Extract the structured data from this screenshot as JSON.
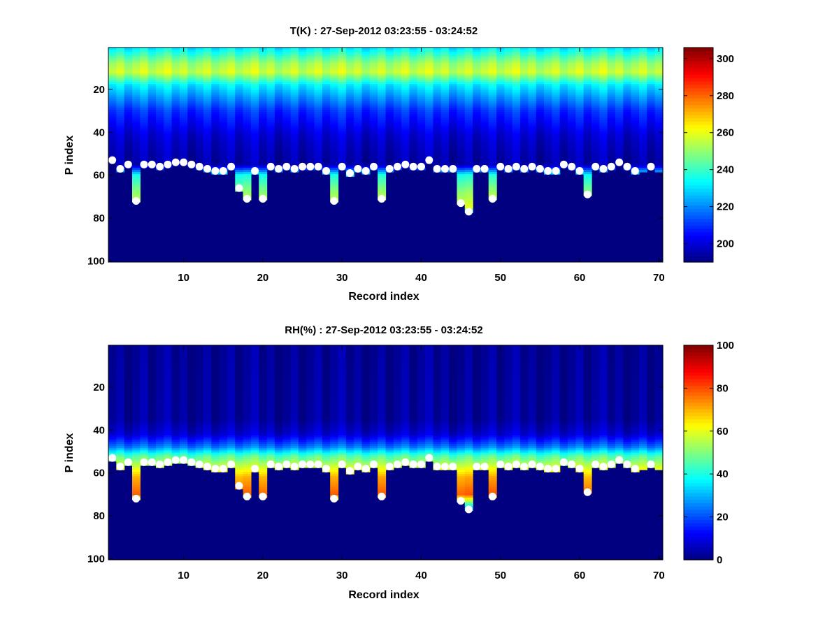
{
  "chart_data": [
    {
      "type": "heatmap",
      "title": "T(K) : 27-Sep-2012 03:23:55 - 03:24:52",
      "xlabel": "Record index",
      "ylabel": "P index",
      "xlim": [
        0.5,
        70.5
      ],
      "ylim": [
        100.5,
        0.5
      ],
      "y_direction": "reversed",
      "xticks": [
        10,
        20,
        30,
        40,
        50,
        60,
        70
      ],
      "yticks": [
        20,
        40,
        60,
        80,
        100
      ],
      "colorbar": {
        "label": "",
        "range": [
          190,
          306
        ],
        "ticks": [
          200,
          220,
          240,
          260,
          280,
          300
        ],
        "colormap": "jet"
      },
      "profile": {
        "p_index": [
          1,
          8,
          12,
          18,
          30,
          42,
          50,
          55,
          60,
          68,
          75,
          80,
          100
        ],
        "value": [
          232,
          252,
          257,
          232,
          210,
          199,
          196,
          195,
          236,
          250,
          258,
          192,
          192
        ]
      },
      "markers": {
        "label": "Surface level",
        "top_records": [
          1,
          2,
          3,
          5,
          6,
          7,
          8,
          9,
          10,
          11,
          12,
          13,
          14,
          15,
          16,
          17,
          19,
          21,
          22,
          23,
          24,
          25,
          26,
          27,
          28,
          30,
          31,
          32,
          33,
          34,
          36,
          37,
          38,
          39,
          40,
          41,
          42,
          43,
          44,
          47,
          48,
          50,
          51,
          52,
          53,
          54,
          55,
          56,
          57,
          58,
          59,
          60,
          62,
          63,
          64,
          65,
          66,
          67,
          69
        ],
        "top_levels": [
          53,
          57,
          55,
          55,
          55,
          56,
          55,
          54,
          54,
          55,
          56,
          57,
          58,
          58,
          56,
          66,
          58,
          56,
          57,
          56,
          57,
          56,
          56,
          56,
          58,
          56,
          59,
          57,
          58,
          56,
          57,
          56,
          55,
          56,
          56,
          53,
          57,
          57,
          57,
          57,
          57,
          56,
          57,
          56,
          57,
          56,
          57,
          58,
          58,
          55,
          56,
          58,
          56,
          57,
          56,
          54,
          56,
          58,
          56
        ],
        "bottom_records": [
          4,
          18,
          20,
          29,
          35,
          45,
          46,
          49,
          61
        ],
        "bottom_levels": [
          72,
          71,
          71,
          72,
          71,
          73,
          77,
          71,
          69
        ]
      }
    },
    {
      "type": "heatmap",
      "title": "RH(%) : 27-Sep-2012 03:23:55 - 03:24:52",
      "xlabel": "Record index",
      "ylabel": "P index",
      "xlim": [
        0.5,
        70.5
      ],
      "ylim": [
        100.5,
        0.5
      ],
      "y_direction": "reversed",
      "xticks": [
        10,
        20,
        30,
        40,
        50,
        60,
        70
      ],
      "yticks": [
        20,
        40,
        60,
        80,
        100
      ],
      "colorbar": {
        "label": "",
        "range": [
          0,
          100
        ],
        "ticks": [
          0,
          20,
          40,
          60,
          80,
          100
        ],
        "colormap": "jet"
      },
      "profile": {
        "p_index": [
          1,
          35,
          42,
          48,
          52,
          56,
          62,
          70,
          80,
          100
        ],
        "value": [
          2,
          3,
          8,
          25,
          45,
          55,
          70,
          78,
          2,
          2
        ]
      },
      "markers": {
        "label": "Surface level",
        "top_records": [
          1,
          2,
          3,
          5,
          6,
          7,
          8,
          9,
          10,
          11,
          12,
          13,
          14,
          15,
          16,
          17,
          19,
          21,
          22,
          23,
          24,
          25,
          26,
          27,
          28,
          30,
          31,
          32,
          33,
          34,
          36,
          37,
          38,
          39,
          40,
          41,
          42,
          43,
          44,
          47,
          48,
          50,
          51,
          52,
          53,
          54,
          55,
          56,
          57,
          58,
          59,
          60,
          62,
          63,
          64,
          65,
          66,
          67,
          69
        ],
        "top_levels": [
          53,
          57,
          55,
          55,
          55,
          56,
          55,
          54,
          54,
          55,
          56,
          57,
          58,
          58,
          56,
          66,
          58,
          56,
          57,
          56,
          57,
          56,
          56,
          56,
          58,
          56,
          59,
          57,
          58,
          56,
          57,
          56,
          55,
          56,
          56,
          53,
          57,
          57,
          57,
          57,
          57,
          56,
          57,
          56,
          57,
          56,
          57,
          58,
          58,
          55,
          56,
          58,
          56,
          57,
          56,
          54,
          56,
          58,
          56
        ],
        "bottom_records": [
          4,
          18,
          20,
          29,
          35,
          45,
          46,
          49,
          61
        ],
        "bottom_levels": [
          72,
          71,
          71,
          72,
          71,
          73,
          77,
          71,
          69
        ]
      }
    }
  ]
}
